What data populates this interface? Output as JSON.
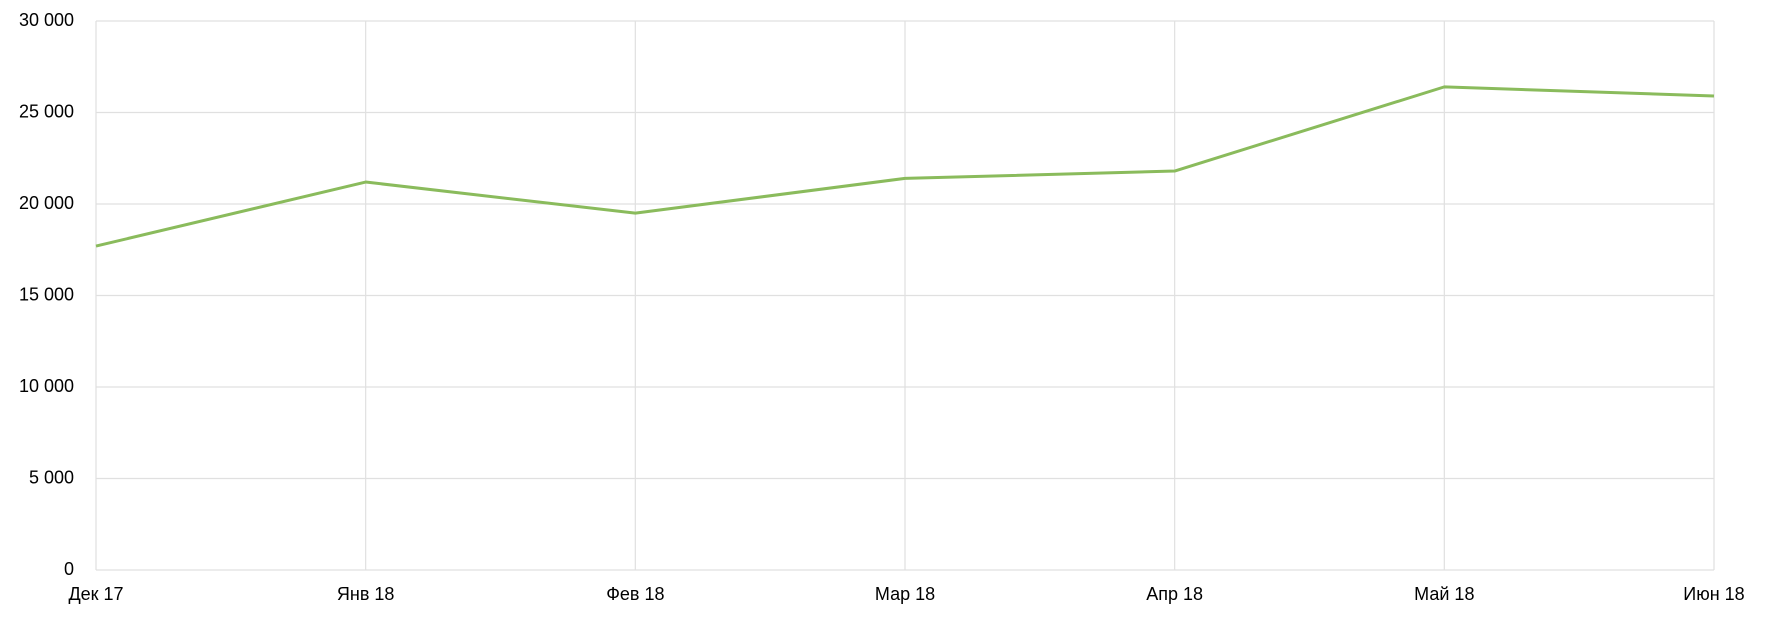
{
  "chart_data": {
    "type": "line",
    "categories": [
      "Дек 17",
      "Янв 18",
      "Фев 18",
      "Мар 18",
      "Апр 18",
      "Май 18",
      "Июн 18"
    ],
    "values": [
      17700,
      21200,
      19500,
      21400,
      21800,
      26400,
      25900
    ],
    "color": "#8abb5c",
    "ylim": [
      0,
      30000
    ],
    "yticks": [
      0,
      {
        "value": 5000,
        "label": "5 000"
      },
      {
        "value": 10000,
        "label": "10 000"
      },
      {
        "value": 15000,
        "label": "15 000"
      },
      {
        "value": 20000,
        "label": "20 000"
      },
      {
        "value": 25000,
        "label": "25 000"
      },
      {
        "value": 30000,
        "label": "30 000"
      }
    ],
    "grid": true
  }
}
